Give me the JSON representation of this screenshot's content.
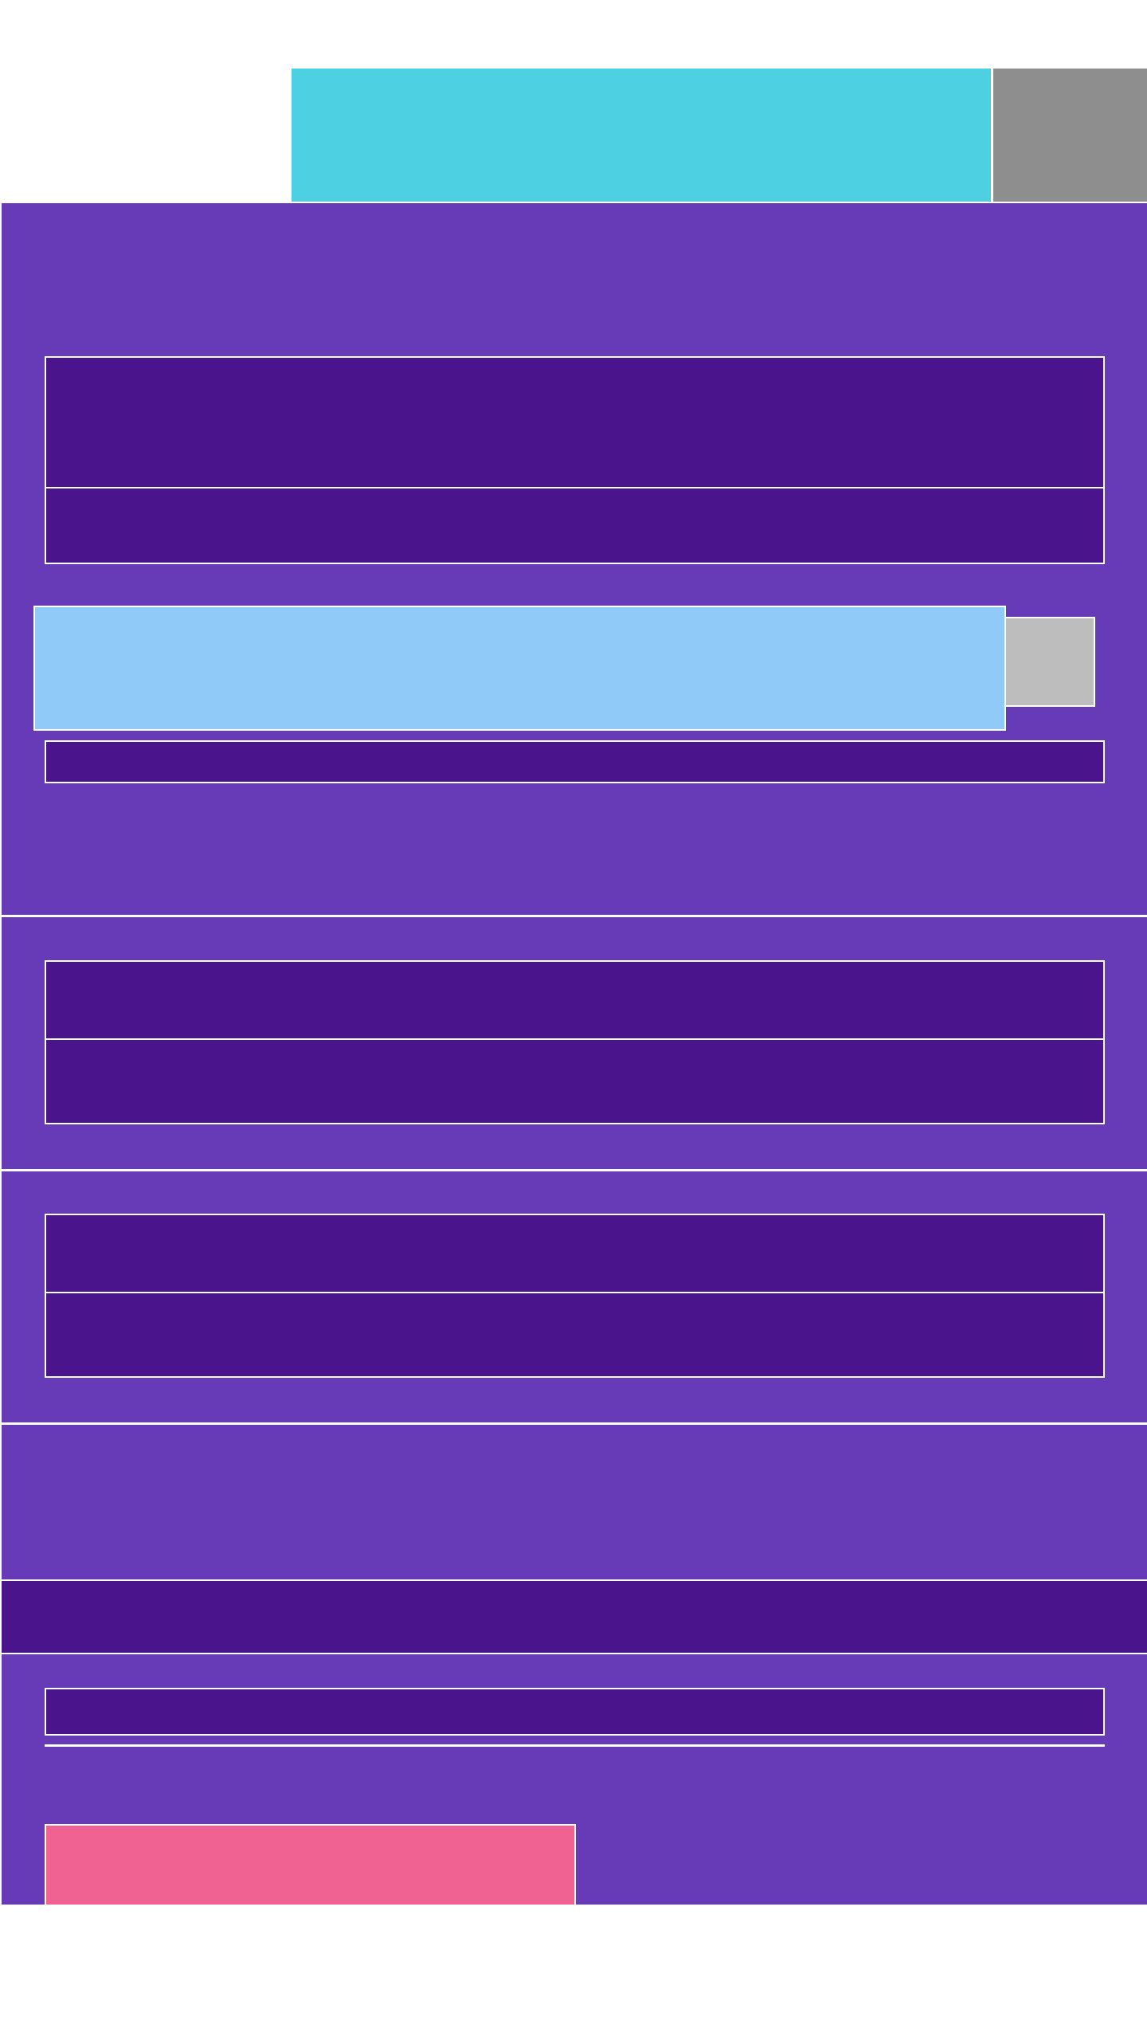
{
  "colors": {
    "page_background": "#ffffff",
    "panel": "#673ab7",
    "panel_dark": "#4a148c",
    "header_accent": "#4dd0e1",
    "header_grey": "#8e8e8e",
    "highlight_light_blue": "#90caf9",
    "grey_button": "#bdbdbd",
    "pink_button": "#f06292",
    "divider": "#ffffff"
  }
}
